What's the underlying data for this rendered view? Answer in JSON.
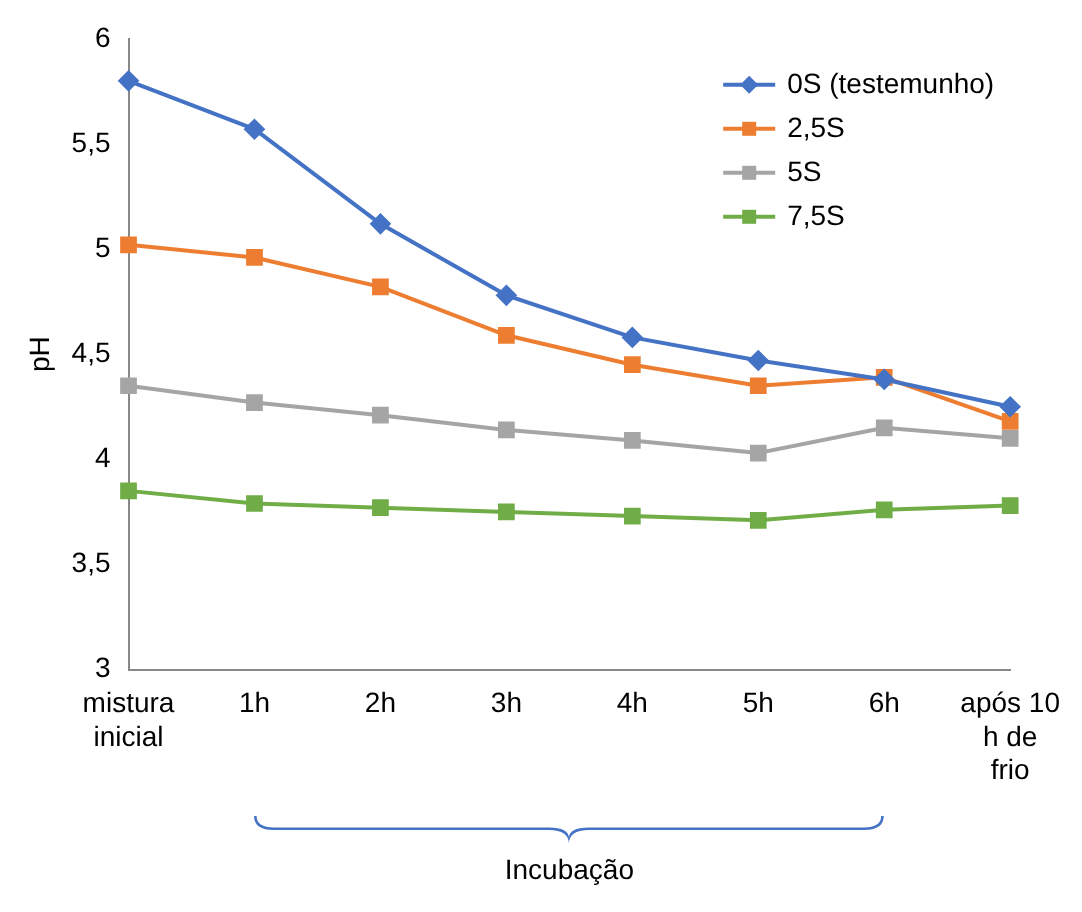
{
  "chart_data": {
    "type": "line",
    "ylabel": "pH",
    "xlabel": "Incubação",
    "categories": [
      "mistura inicial",
      "1h",
      "2h",
      "3h",
      "4h",
      "5h",
      "6h",
      "após 10 h de frio"
    ],
    "series": [
      {
        "name": "0S (testemunho)",
        "color": "#4472c4",
        "marker": "diamond",
        "values": [
          5.8,
          5.57,
          5.12,
          4.78,
          4.58,
          4.47,
          4.38,
          4.25
        ]
      },
      {
        "name": "2,5S",
        "color": "#ed7d31",
        "marker": "square",
        "values": [
          5.02,
          4.96,
          4.82,
          4.59,
          4.45,
          4.35,
          4.39,
          4.18
        ]
      },
      {
        "name": "5S",
        "color": "#a5a5a5",
        "marker": "square",
        "values": [
          4.35,
          4.27,
          4.21,
          4.14,
          4.09,
          4.03,
          4.15,
          4.1
        ]
      },
      {
        "name": "7,5S",
        "color": "#70ad47",
        "marker": "square",
        "values": [
          3.85,
          3.79,
          3.77,
          3.75,
          3.73,
          3.71,
          3.76,
          3.78
        ]
      }
    ],
    "ylim": [
      3,
      6
    ],
    "yticks": [
      3,
      {
        "value": 3.5,
        "label": "3,5"
      },
      4,
      {
        "value": 4.5,
        "label": "4,5"
      },
      5,
      {
        "value": 5.5,
        "label": "5,5"
      },
      6
    ],
    "legend": "top right",
    "line_style": "solid"
  }
}
